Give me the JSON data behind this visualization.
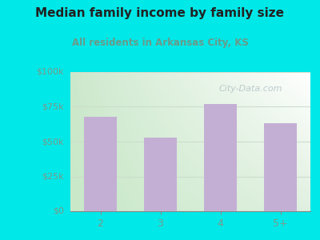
{
  "title": "Median family income by family size",
  "subtitle": "All residents in Arkansas City, KS",
  "categories": [
    "2",
    "3",
    "4",
    "5+"
  ],
  "values": [
    68000,
    53000,
    77000,
    63000
  ],
  "bar_color": "#c4afd4",
  "title_color": "#222222",
  "subtitle_color": "#6a9a8a",
  "ytick_color": "#7a9a8a",
  "xtick_color": "#7a9a8a",
  "background_color": "#00e8e8",
  "plot_bg_top_left": "#d8edd8",
  "plot_bg_top_right": "#ffffff",
  "plot_bg_bottom": "#e8f5e8",
  "ylim": [
    0,
    100000
  ],
  "yticks": [
    0,
    25000,
    50000,
    75000,
    100000
  ],
  "ytick_labels": [
    "$0",
    "$25k",
    "$50k",
    "$75k",
    "$100k"
  ],
  "watermark": "City-Data.com",
  "watermark_color": "#aabbc0",
  "gridline_color": "#ccddcc"
}
